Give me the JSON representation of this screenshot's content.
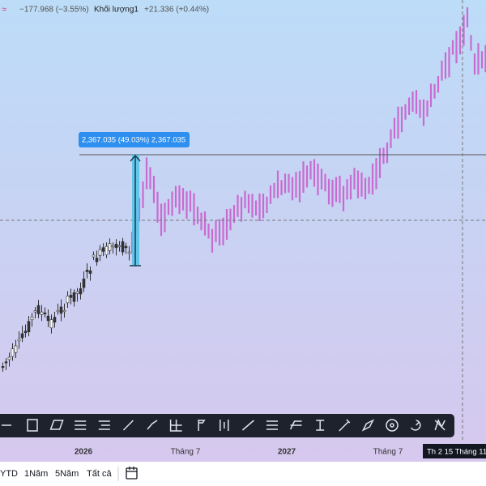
{
  "header": {
    "icon": "≈",
    "change": "−177.968 (−3.55%)",
    "volume_label": "Khối lượng1",
    "volume_change": "+21.336 (+0.44%)"
  },
  "measure_label": "2,367.035 (49.03%) 2,367.035",
  "time_axis": {
    "labels": [
      "2026",
      "Tháng 7",
      "2027",
      "Tháng 7"
    ],
    "crosshair": "Th 2 15 Tháng 11"
  },
  "range_bar": {
    "buttons": [
      "YTD",
      "1Năm",
      "5Năm",
      "Tất cả"
    ]
  }
}
